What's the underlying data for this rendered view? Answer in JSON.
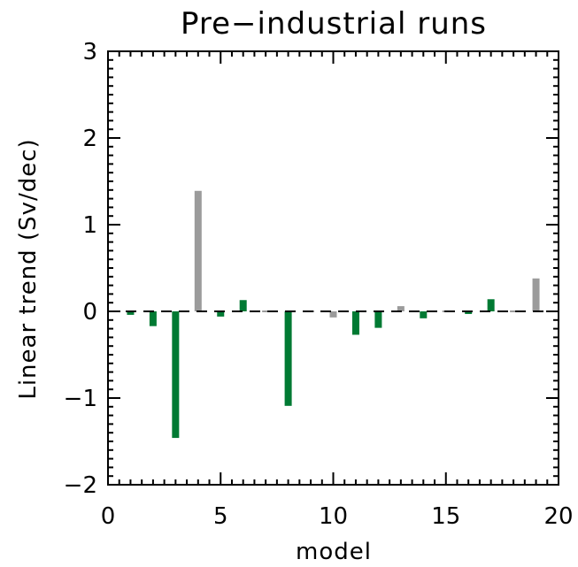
{
  "chart_data": {
    "type": "bar",
    "title": "Pre−industrial runs",
    "xlabel": "model",
    "ylabel": "Linear trend (Sv/dec)",
    "xlim": [
      0,
      20
    ],
    "ylim": [
      -2,
      3
    ],
    "x_ticks": [
      0,
      5,
      10,
      15,
      20
    ],
    "x_tick_labels": [
      "0",
      "5",
      "10",
      "15",
      "20"
    ],
    "y_ticks": [
      -2,
      -1,
      0,
      1,
      2,
      3
    ],
    "y_tick_labels": [
      "−2",
      "−1",
      "0",
      "1",
      "2",
      "3"
    ],
    "reference_line": {
      "y": 0,
      "style": "dashed"
    },
    "colors": {
      "green": "#007a33",
      "gray": "#9b9b9b"
    },
    "bars": [
      {
        "x": 1,
        "value": -0.04,
        "color": "green"
      },
      {
        "x": 2,
        "value": -0.17,
        "color": "green"
      },
      {
        "x": 3,
        "value": -1.46,
        "color": "green"
      },
      {
        "x": 4,
        "value": 1.39,
        "color": "gray"
      },
      {
        "x": 5,
        "value": -0.06,
        "color": "green"
      },
      {
        "x": 6,
        "value": 0.13,
        "color": "green"
      },
      {
        "x": 7,
        "value": 0.02,
        "color": "gray"
      },
      {
        "x": 8,
        "value": -1.09,
        "color": "green"
      },
      {
        "x": 9,
        "value": 0.0,
        "color": "gray"
      },
      {
        "x": 10,
        "value": -0.07,
        "color": "gray"
      },
      {
        "x": 11,
        "value": -0.27,
        "color": "green"
      },
      {
        "x": 12,
        "value": -0.19,
        "color": "green"
      },
      {
        "x": 13,
        "value": 0.06,
        "color": "gray"
      },
      {
        "x": 14,
        "value": -0.08,
        "color": "green"
      },
      {
        "x": 15,
        "value": 0.0,
        "color": "gray"
      },
      {
        "x": 16,
        "value": -0.03,
        "color": "green"
      },
      {
        "x": 17,
        "value": 0.14,
        "color": "green"
      },
      {
        "x": 18,
        "value": 0.0,
        "color": "gray"
      },
      {
        "x": 19,
        "value": 0.38,
        "color": "gray"
      }
    ]
  }
}
